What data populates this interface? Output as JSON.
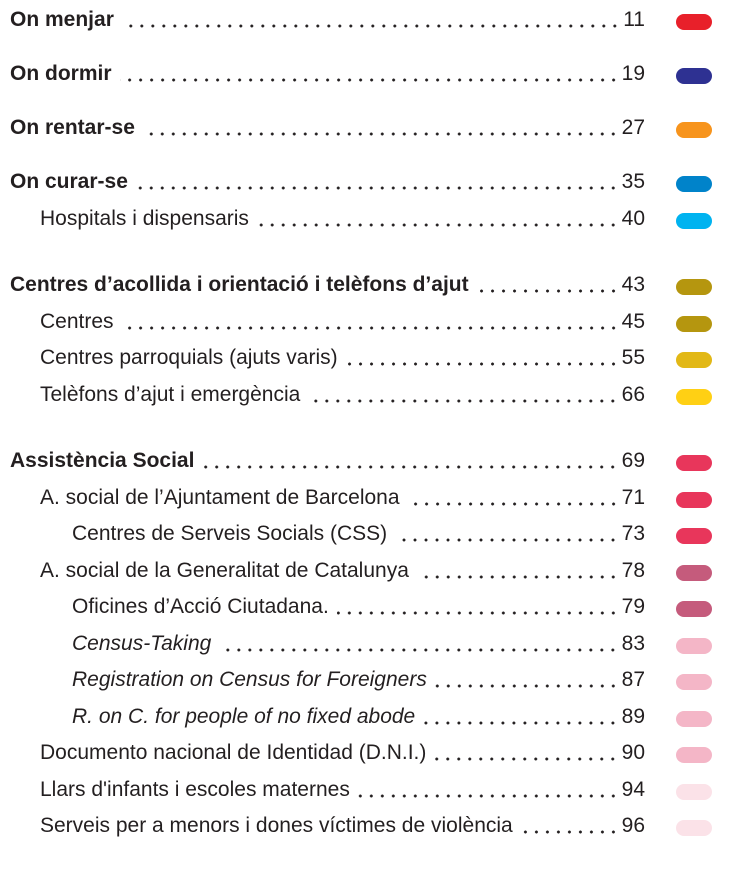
{
  "sections": [
    {
      "label": "On menjar",
      "page": "11",
      "color": "#e8202a"
    },
    {
      "label": "On dormir",
      "page": "19",
      "color": "#2e3192"
    },
    {
      "label": "On rentar-se",
      "page": "27",
      "color": "#f7941d"
    },
    {
      "label": "On curar-se",
      "page": "35",
      "color": "#0083ca",
      "items": [
        {
          "label": "Hospitals i dispensaris",
          "page": "40",
          "color": "#00b3f0"
        }
      ]
    },
    {
      "label": "Centres d’acollida i orientació i telèfons d’ajut",
      "page": "43",
      "color": "#b5960f",
      "items": [
        {
          "label": "Centres",
          "page": "45",
          "color": "#b5960f"
        },
        {
          "label": "Centres parroquials (ajuts varis)",
          "page": "55",
          "color": "#e2b816"
        },
        {
          "label": "Telèfons d’ajut i emergència",
          "page": "66",
          "color": "#ffd014"
        }
      ]
    },
    {
      "label": "Assistència Social",
      "page": "69",
      "color": "#e8365b",
      "items": [
        {
          "label": "A. social de l’Ajuntament de Barcelona",
          "page": "71",
          "color": "#e8365b",
          "items": [
            {
              "label": "Centres de Serveis Socials (CSS)",
              "page": "73",
              "color": "#e8365b"
            }
          ]
        },
        {
          "label": "A. social de la Generalitat de Catalunya",
          "page": "78",
          "color": "#c55b7c",
          "items": [
            {
              "label": "Oficines d’Acció Ciutadana.",
              "page": "79",
              "color": "#c55b7c"
            },
            {
              "label": "Census-Taking",
              "page": "83",
              "color": "#f4b6c7",
              "italic": true
            },
            {
              "label": "Registration on Census for Foreigners",
              "page": "87",
              "color": "#f4b6c7",
              "italic": true
            },
            {
              "label": "R. on C. for people of no fixed abode",
              "page": "89",
              "color": "#f4b6c7",
              "italic": true
            }
          ]
        },
        {
          "label": "Documento nacional de Identidad (D.N.I.)",
          "page": "90",
          "color": "#f4b6c7"
        },
        {
          "label": "Llars d'infants i escoles maternes",
          "page": "94",
          "color": "#fbe2e8"
        },
        {
          "label": "Serveis per a menors i dones víctimes de violència",
          "page": "96",
          "color": "#fbe2e8"
        }
      ]
    }
  ]
}
